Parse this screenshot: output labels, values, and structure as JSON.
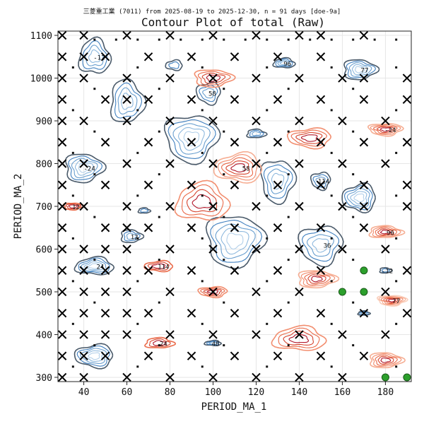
{
  "chart_data": {
    "type": "contour",
    "subtitle": "三菱重工業 (7011) from 2025-08-19 to 2025-12-30, n = 91 days [doe-9a]",
    "title": "Contour Plot of total (Raw)",
    "xlabel": "PERIOD_MA_1",
    "ylabel": "PERIOD_MA_2",
    "xlim": [
      28,
      192
    ],
    "ylim": [
      290,
      1110
    ],
    "xticks": [
      40,
      60,
      80,
      100,
      120,
      140,
      160,
      180
    ],
    "yticks": [
      300,
      400,
      500,
      600,
      700,
      800,
      900,
      1000,
      1100
    ],
    "grid": true,
    "contour_labels": [
      "-12",
      "-24",
      "58",
      "96",
      "77",
      "114",
      "24",
      "12",
      "36",
      "48"
    ],
    "colors": {
      "negative": "#1f5fa6",
      "negative_light": "#7fb0d8",
      "positive": "#c8331f",
      "positive_light": "#f4a48a",
      "dark": "#4a5a6a",
      "green_point": "#2ca02c"
    },
    "x_marker_points": [
      [
        30,
        1100
      ],
      [
        40,
        1100
      ],
      [
        60,
        1100
      ],
      [
        80,
        1100
      ],
      [
        100,
        1100
      ],
      [
        120,
        1100
      ],
      [
        140,
        1100
      ],
      [
        150,
        1100
      ],
      [
        170,
        1100
      ],
      [
        30,
        1050
      ],
      [
        40,
        1050
      ],
      [
        50,
        1050
      ],
      [
        70,
        1050
      ],
      [
        90,
        1050
      ],
      [
        110,
        1050
      ],
      [
        130,
        1050
      ],
      [
        150,
        1050
      ],
      [
        30,
        1000
      ],
      [
        40,
        1000
      ],
      [
        60,
        1000
      ],
      [
        80,
        1000
      ],
      [
        100,
        1000
      ],
      [
        120,
        1000
      ],
      [
        140,
        1000
      ],
      [
        160,
        1000
      ],
      [
        170,
        1000
      ],
      [
        190,
        1000
      ],
      [
        30,
        950
      ],
      [
        50,
        950
      ],
      [
        60,
        950
      ],
      [
        70,
        950
      ],
      [
        90,
        950
      ],
      [
        110,
        950
      ],
      [
        130,
        950
      ],
      [
        150,
        950
      ],
      [
        170,
        950
      ],
      [
        190,
        950
      ],
      [
        30,
        900
      ],
      [
        40,
        900
      ],
      [
        60,
        900
      ],
      [
        80,
        900
      ],
      [
        100,
        900
      ],
      [
        120,
        900
      ],
      [
        140,
        900
      ],
      [
        160,
        900
      ],
      [
        180,
        900
      ],
      [
        30,
        850
      ],
      [
        50,
        850
      ],
      [
        70,
        850
      ],
      [
        90,
        850
      ],
      [
        110,
        850
      ],
      [
        130,
        850
      ],
      [
        150,
        850
      ],
      [
        170,
        850
      ],
      [
        190,
        850
      ],
      [
        30,
        800
      ],
      [
        40,
        800
      ],
      [
        60,
        800
      ],
      [
        80,
        800
      ],
      [
        100,
        800
      ],
      [
        120,
        800
      ],
      [
        140,
        800
      ],
      [
        160,
        800
      ],
      [
        180,
        800
      ],
      [
        30,
        750
      ],
      [
        50,
        750
      ],
      [
        70,
        750
      ],
      [
        90,
        750
      ],
      [
        110,
        750
      ],
      [
        130,
        750
      ],
      [
        150,
        750
      ],
      [
        170,
        750
      ],
      [
        190,
        750
      ],
      [
        30,
        700
      ],
      [
        40,
        700
      ],
      [
        60,
        700
      ],
      [
        80,
        700
      ],
      [
        100,
        700
      ],
      [
        120,
        700
      ],
      [
        140,
        700
      ],
      [
        160,
        700
      ],
      [
        170,
        700
      ],
      [
        190,
        700
      ],
      [
        30,
        650
      ],
      [
        50,
        650
      ],
      [
        60,
        650
      ],
      [
        70,
        650
      ],
      [
        90,
        650
      ],
      [
        110,
        650
      ],
      [
        130,
        650
      ],
      [
        150,
        650
      ],
      [
        170,
        650
      ],
      [
        30,
        600
      ],
      [
        40,
        600
      ],
      [
        50,
        600
      ],
      [
        60,
        600
      ],
      [
        80,
        600
      ],
      [
        100,
        600
      ],
      [
        120,
        600
      ],
      [
        140,
        600
      ],
      [
        160,
        600
      ],
      [
        180,
        600
      ],
      [
        30,
        550
      ],
      [
        40,
        550
      ],
      [
        50,
        550
      ],
      [
        60,
        550
      ],
      [
        70,
        550
      ],
      [
        90,
        550
      ],
      [
        110,
        550
      ],
      [
        130,
        550
      ],
      [
        150,
        550
      ],
      [
        190,
        550
      ],
      [
        30,
        500
      ],
      [
        40,
        500
      ],
      [
        50,
        500
      ],
      [
        60,
        500
      ],
      [
        80,
        500
      ],
      [
        100,
        500
      ],
      [
        120,
        500
      ],
      [
        140,
        500
      ],
      [
        180,
        500
      ],
      [
        30,
        450
      ],
      [
        40,
        450
      ],
      [
        50,
        450
      ],
      [
        60,
        450
      ],
      [
        70,
        450
      ],
      [
        90,
        450
      ],
      [
        110,
        450
      ],
      [
        130,
        450
      ],
      [
        150,
        450
      ],
      [
        170,
        450
      ],
      [
        190,
        450
      ],
      [
        30,
        400
      ],
      [
        40,
        400
      ],
      [
        50,
        400
      ],
      [
        60,
        400
      ],
      [
        80,
        400
      ],
      [
        100,
        400
      ],
      [
        120,
        400
      ],
      [
        140,
        400
      ],
      [
        160,
        400
      ],
      [
        180,
        400
      ],
      [
        30,
        350
      ],
      [
        40,
        350
      ],
      [
        50,
        350
      ],
      [
        70,
        350
      ],
      [
        90,
        350
      ],
      [
        110,
        350
      ],
      [
        130,
        350
      ],
      [
        150,
        350
      ],
      [
        170,
        350
      ],
      [
        30,
        300
      ],
      [
        40,
        300
      ],
      [
        60,
        300
      ],
      [
        80,
        300
      ],
      [
        100,
        300
      ],
      [
        120,
        300
      ],
      [
        140,
        300
      ],
      [
        160,
        300
      ]
    ],
    "dot_points": [
      [
        45,
        1090
      ],
      [
        55,
        1090
      ],
      [
        65,
        1090
      ],
      [
        75,
        1090
      ],
      [
        85,
        1090
      ],
      [
        95,
        1090
      ],
      [
        105,
        1090
      ],
      [
        115,
        1090
      ],
      [
        125,
        1090
      ],
      [
        135,
        1090
      ],
      [
        145,
        1090
      ],
      [
        155,
        1090
      ],
      [
        165,
        1090
      ],
      [
        175,
        1090
      ],
      [
        185,
        1090
      ],
      [
        35,
        1025
      ],
      [
        65,
        1025
      ],
      [
        95,
        1025
      ],
      [
        125,
        1025
      ],
      [
        155,
        1025
      ],
      [
        185,
        1025
      ],
      [
        45,
        975
      ],
      [
        75,
        975
      ],
      [
        105,
        975
      ],
      [
        135,
        975
      ],
      [
        165,
        975
      ],
      [
        35,
        925
      ],
      [
        65,
        925
      ],
      [
        95,
        925
      ],
      [
        125,
        925
      ],
      [
        155,
        925
      ],
      [
        185,
        925
      ],
      [
        45,
        875
      ],
      [
        75,
        875
      ],
      [
        105,
        875
      ],
      [
        135,
        875
      ],
      [
        165,
        875
      ],
      [
        35,
        825
      ],
      [
        65,
        825
      ],
      [
        95,
        825
      ],
      [
        125,
        825
      ],
      [
        155,
        825
      ],
      [
        185,
        825
      ],
      [
        45,
        775
      ],
      [
        75,
        775
      ],
      [
        105,
        775
      ],
      [
        135,
        775
      ],
      [
        165,
        775
      ],
      [
        35,
        725
      ],
      [
        65,
        725
      ],
      [
        95,
        725
      ],
      [
        125,
        725
      ],
      [
        155,
        725
      ],
      [
        185,
        725
      ],
      [
        45,
        675
      ],
      [
        75,
        675
      ],
      [
        105,
        675
      ],
      [
        135,
        675
      ],
      [
        165,
        675
      ],
      [
        35,
        625
      ],
      [
        65,
        625
      ],
      [
        95,
        625
      ],
      [
        125,
        625
      ],
      [
        155,
        625
      ],
      [
        185,
        625
      ],
      [
        45,
        575
      ],
      [
        75,
        575
      ],
      [
        105,
        575
      ],
      [
        135,
        575
      ],
      [
        165,
        575
      ],
      [
        35,
        525
      ],
      [
        65,
        525
      ],
      [
        95,
        525
      ],
      [
        125,
        525
      ],
      [
        155,
        525
      ],
      [
        185,
        525
      ],
      [
        45,
        475
      ],
      [
        75,
        475
      ],
      [
        105,
        475
      ],
      [
        135,
        475
      ],
      [
        165,
        475
      ],
      [
        35,
        425
      ],
      [
        65,
        425
      ],
      [
        95,
        425
      ],
      [
        125,
        425
      ],
      [
        155,
        425
      ],
      [
        185,
        425
      ],
      [
        45,
        375
      ],
      [
        75,
        375
      ],
      [
        105,
        375
      ],
      [
        135,
        375
      ],
      [
        165,
        375
      ],
      [
        35,
        325
      ],
      [
        65,
        325
      ],
      [
        95,
        325
      ],
      [
        125,
        325
      ],
      [
        155,
        325
      ],
      [
        185,
        325
      ]
    ],
    "green_points": [
      [
        170,
        550
      ],
      [
        160,
        500
      ],
      [
        170,
        500
      ],
      [
        180,
        300
      ],
      [
        190,
        300
      ]
    ],
    "contour_features": [
      {
        "x": 45,
        "y": 1050,
        "r": 13,
        "levels": 4,
        "sign": -1,
        "ry": 1.6
      },
      {
        "x": 60,
        "y": 945,
        "r": 14,
        "levels": 4,
        "sign": -1,
        "ry": 1.4
      },
      {
        "x": 40,
        "y": 790,
        "r": 16,
        "levels": 5,
        "sign": -1,
        "ry": 2.4
      },
      {
        "x": 90,
        "y": 860,
        "r": 22,
        "levels": 5,
        "sign": -1,
        "ry": 2.0
      },
      {
        "x": 98,
        "y": 965,
        "r": 10,
        "levels": 3,
        "sign": -1,
        "ry": 2.0
      },
      {
        "x": 82,
        "y": 1030,
        "r": 7,
        "levels": 2,
        "sign": -1,
        "ry": 3
      },
      {
        "x": 133,
        "y": 1035,
        "r": 9,
        "levels": 4,
        "sign": -1,
        "ry": 4
      },
      {
        "x": 120,
        "y": 870,
        "r": 8,
        "levels": 3,
        "sign": -1,
        "ry": 4
      },
      {
        "x": 168,
        "y": 1020,
        "r": 14,
        "levels": 5,
        "sign": -1,
        "ry": 3
      },
      {
        "x": 130,
        "y": 760,
        "r": 14,
        "levels": 4,
        "sign": -1,
        "ry": 1.4
      },
      {
        "x": 150,
        "y": 760,
        "r": 8,
        "levels": 3,
        "sign": -1,
        "ry": 2
      },
      {
        "x": 168,
        "y": 720,
        "r": 14,
        "levels": 5,
        "sign": -1,
        "ry": 2.2
      },
      {
        "x": 45,
        "y": 560,
        "r": 16,
        "levels": 5,
        "sign": -1,
        "ry": 4
      },
      {
        "x": 68,
        "y": 690,
        "r": 5,
        "levels": 2,
        "sign": -1,
        "ry": 4
      },
      {
        "x": 62,
        "y": 630,
        "r": 9,
        "levels": 3,
        "sign": -1,
        "ry": 3
      },
      {
        "x": 110,
        "y": 620,
        "r": 24,
        "levels": 5,
        "sign": -1,
        "ry": 2
      },
      {
        "x": 150,
        "y": 610,
        "r": 18,
        "levels": 4,
        "sign": -1,
        "ry": 2
      },
      {
        "x": 45,
        "y": 350,
        "r": 16,
        "levels": 5,
        "sign": -1,
        "ry": 3
      },
      {
        "x": 100,
        "y": 380,
        "r": 7,
        "levels": 3,
        "sign": -1,
        "ry": 6
      },
      {
        "x": 170,
        "y": 450,
        "r": 5,
        "levels": 3,
        "sign": -1,
        "ry": 5
      },
      {
        "x": 180,
        "y": 550,
        "r": 5,
        "levels": 2,
        "sign": -1,
        "ry": 4
      },
      {
        "x": 100,
        "y": 1000,
        "r": 16,
        "levels": 4,
        "sign": 1,
        "ry": 4
      },
      {
        "x": 180,
        "y": 880,
        "r": 14,
        "levels": 5,
        "sign": 1,
        "ry": 5
      },
      {
        "x": 145,
        "y": 860,
        "r": 18,
        "levels": 4,
        "sign": 1,
        "ry": 4
      },
      {
        "x": 112,
        "y": 790,
        "r": 20,
        "levels": 5,
        "sign": 1,
        "ry": 3
      },
      {
        "x": 95,
        "y": 710,
        "r": 22,
        "levels": 4,
        "sign": 1,
        "ry": 2.5
      },
      {
        "x": 180,
        "y": 640,
        "r": 14,
        "levels": 5,
        "sign": 1,
        "ry": 5
      },
      {
        "x": 148,
        "y": 530,
        "r": 16,
        "levels": 5,
        "sign": 1,
        "ry": 4
      },
      {
        "x": 183,
        "y": 480,
        "r": 12,
        "levels": 6,
        "sign": 1,
        "ry": 5
      },
      {
        "x": 100,
        "y": 500,
        "r": 12,
        "levels": 4,
        "sign": 1,
        "ry": 5
      },
      {
        "x": 75,
        "y": 560,
        "r": 12,
        "levels": 3,
        "sign": 1,
        "ry": 5
      },
      {
        "x": 140,
        "y": 390,
        "r": 22,
        "levels": 4,
        "sign": 1,
        "ry": 4
      },
      {
        "x": 75,
        "y": 380,
        "r": 12,
        "levels": 3,
        "sign": 1,
        "ry": 5
      },
      {
        "x": 180,
        "y": 340,
        "r": 14,
        "levels": 5,
        "sign": 1,
        "ry": 4
      },
      {
        "x": 35,
        "y": 700,
        "r": 8,
        "levels": 3,
        "sign": 1,
        "ry": 5
      }
    ]
  }
}
